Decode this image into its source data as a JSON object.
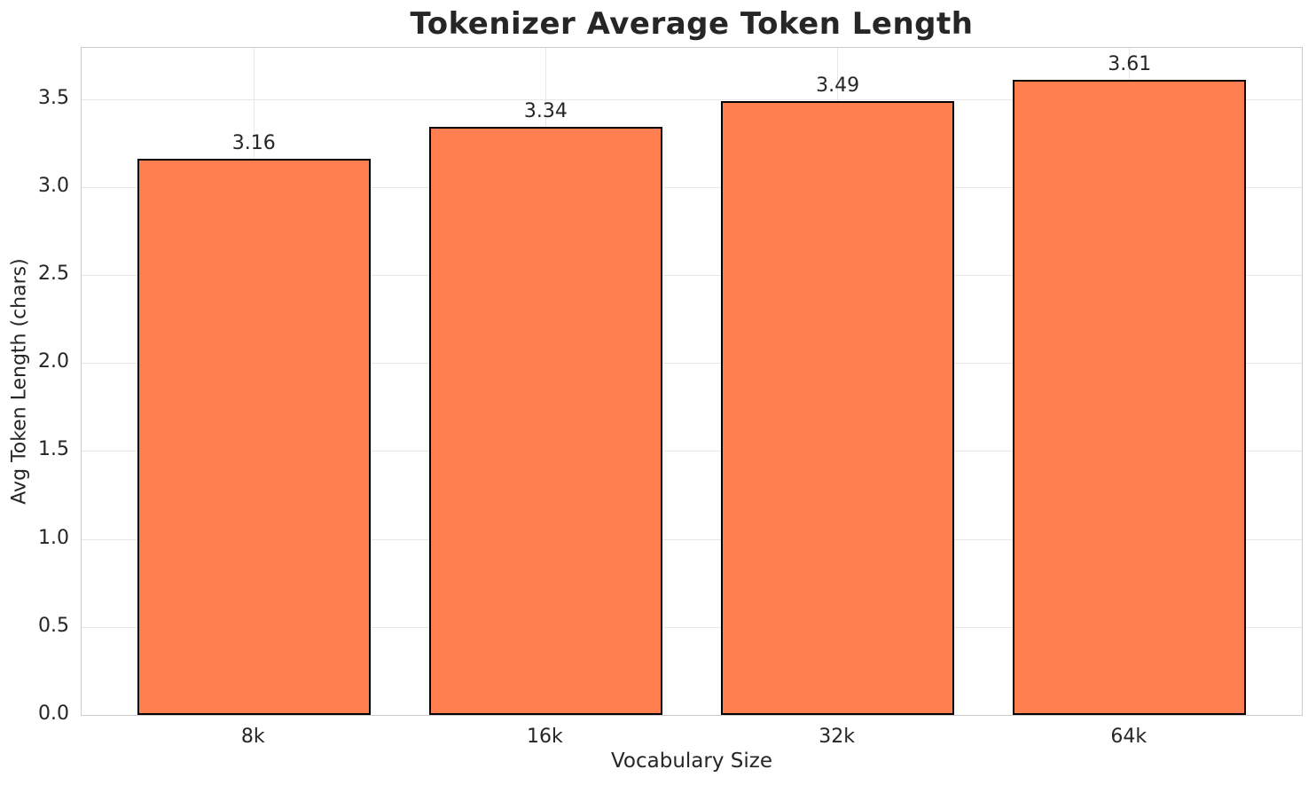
{
  "chart_data": {
    "type": "bar",
    "title": "Tokenizer Average Token Length",
    "xlabel": "Vocabulary Size",
    "ylabel": "Avg Token Length (chars)",
    "categories": [
      "8k",
      "16k",
      "32k",
      "64k"
    ],
    "values": [
      3.16,
      3.34,
      3.49,
      3.61
    ],
    "value_labels": [
      "3.16",
      "3.34",
      "3.49",
      "3.61"
    ],
    "yticks": [
      0.0,
      0.5,
      1.0,
      1.5,
      2.0,
      2.5,
      3.0,
      3.5
    ],
    "ytick_labels": [
      "0.0",
      "0.5",
      "1.0",
      "1.5",
      "2.0",
      "2.5",
      "3.0",
      "3.5"
    ],
    "ylim": [
      0,
      3.79
    ],
    "grid": "both",
    "legend": "none",
    "bar_color": "#FF7F50",
    "bar_edge_color": "#000000",
    "grid_color": "#e7e7e7",
    "spine_color": "#cccccc",
    "text_color": "#262626",
    "background_color": "#ffffff"
  }
}
